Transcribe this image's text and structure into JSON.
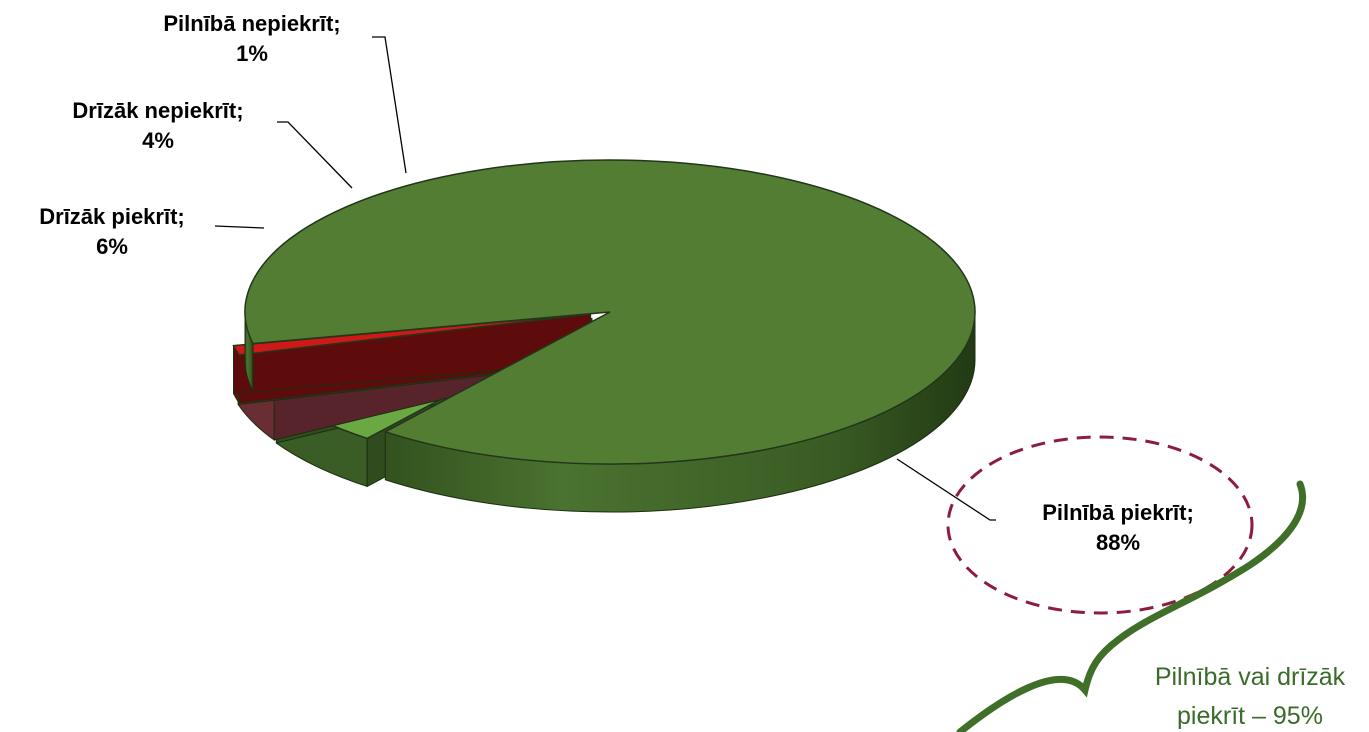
{
  "chart_data": {
    "type": "pie",
    "style": "3d-exploded",
    "slices": [
      {
        "category": "Pilnībā piekrīt",
        "value": 88,
        "label": "88%",
        "color": "#537d32"
      },
      {
        "category": "Drīzāk piekrīt",
        "value": 6,
        "label": "6%",
        "color": "#6aa843"
      },
      {
        "category": "Drīzāk nepiekrīt",
        "value": 4,
        "label": "4%",
        "color": "#c0515e"
      },
      {
        "category": "Pilnībā nepiekrīt",
        "value": 1,
        "label": "1%",
        "color": "#d01818"
      }
    ],
    "label_format": "{category}; {label}",
    "highlight": {
      "slice": "Pilnībā piekrīt",
      "style": "dashed-ellipse",
      "color": "#8b1d3d"
    },
    "annotation": {
      "line1": "Pilnībā vai drīzāk",
      "line2": "piekrīt – 95%",
      "color": "#3a6b2a"
    },
    "legend": "none"
  }
}
